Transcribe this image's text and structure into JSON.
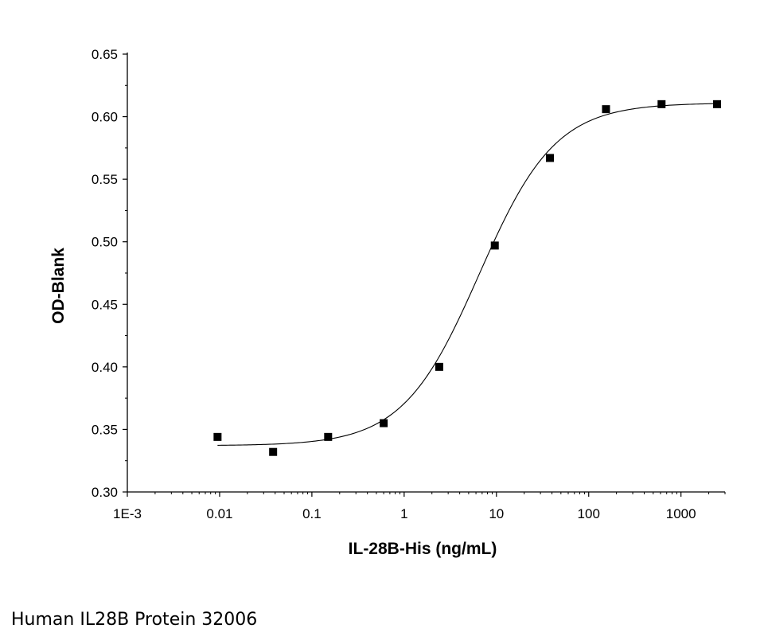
{
  "chart_data": {
    "type": "scatter",
    "xlabel": "IL-28B-His (ng/mL)",
    "ylabel": "OD-Blank",
    "x_scale": "log",
    "xlim": [
      0.001,
      3000
    ],
    "ylim": [
      0.3,
      0.65
    ],
    "x_ticks": [
      0.001,
      0.01,
      0.1,
      1,
      10,
      100,
      1000
    ],
    "x_tick_labels": [
      "1E-3",
      "0.01",
      "0.1",
      "1",
      "10",
      "100",
      "1000"
    ],
    "y_ticks": [
      0.3,
      0.35,
      0.4,
      0.45,
      0.5,
      0.55,
      0.6,
      0.65
    ],
    "y_tick_labels": [
      "0.30",
      "0.35",
      "0.40",
      "0.45",
      "0.50",
      "0.55",
      "0.60",
      "0.65"
    ],
    "grid": false,
    "series": [
      {
        "marker": "square",
        "color": "#000000",
        "x": [
          0.0095,
          0.038,
          0.15,
          0.6,
          2.4,
          9.6,
          38,
          154,
          616,
          2460
        ],
        "y": [
          0.344,
          0.332,
          0.344,
          0.355,
          0.4,
          0.497,
          0.567,
          0.606,
          0.61,
          0.61
        ]
      }
    ],
    "fit_curve": {
      "model": "four-parameter logistic",
      "color": "#000000",
      "bottom": 0.337,
      "top": 0.611,
      "ec50": 6.5,
      "hill": 1.05
    }
  },
  "caption": "Human IL28B Protein 32006"
}
